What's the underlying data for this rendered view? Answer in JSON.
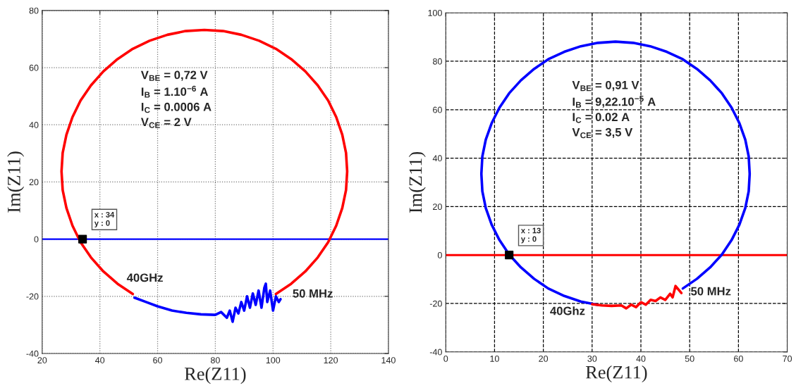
{
  "chart_data": [
    {
      "type": "line",
      "xlabel": "Re(Z11)",
      "ylabel": "Im(Z11)",
      "xlim": [
        20,
        140
      ],
      "xticks": [
        20,
        40,
        60,
        80,
        100,
        120,
        140
      ],
      "ylim": [
        -40,
        80
      ],
      "yticks": [
        -40,
        -20,
        0,
        20,
        40,
        60,
        80
      ],
      "grid": true,
      "legend": false,
      "series": [
        {
          "type": "line",
          "color": "#ff0000",
          "x": [
            101.0,
            106.3,
            111.2,
            115.5,
            119.1,
            121.9,
            124.0,
            125.3,
            125.7,
            125.3,
            124.0,
            121.9,
            119.1,
            115.5,
            111.2,
            106.3,
            101.0,
            95.2,
            89.0,
            82.7,
            76.2,
            69.7,
            63.4,
            57.2,
            51.4,
            46.1,
            41.2,
            36.9,
            33.3,
            30.5,
            28.4,
            27.1,
            26.7,
            27.1,
            28.4,
            30.5,
            33.3,
            36.9,
            41.2,
            46.1,
            51.4
          ],
          "values": [
            -19.2,
            -15.6,
            -11.3,
            -6.4,
            -1.1,
            4.7,
            10.9,
            17.2,
            23.7,
            30.2,
            36.5,
            42.7,
            48.5,
            53.8,
            58.7,
            63.0,
            66.6,
            69.4,
            71.5,
            72.8,
            73.2,
            72.8,
            71.5,
            69.4,
            66.6,
            63.0,
            58.7,
            53.8,
            48.5,
            42.7,
            36.5,
            30.2,
            23.7,
            17.2,
            10.9,
            4.7,
            -1.1,
            -6.4,
            -11.3,
            -15.6,
            -19.2
          ]
        },
        {
          "type": "line",
          "color": "#0000ff",
          "x": [
            52,
            56,
            60,
            65,
            70,
            75,
            80,
            82,
            84,
            85,
            86,
            87,
            88,
            89,
            90,
            91,
            92,
            93,
            94,
            95,
            96,
            97,
            97.5,
            98,
            99,
            100,
            101,
            102,
            102.6
          ],
          "values": [
            -20.5,
            -22,
            -23.5,
            -25,
            -25.8,
            -26.3,
            -26.5,
            -25.5,
            -27.5,
            -25,
            -28.9,
            -24,
            -26,
            -22,
            -25,
            -20,
            -24,
            -19,
            -23,
            -18,
            -24,
            -17,
            -15.6,
            -22,
            -18,
            -25,
            -20,
            -22,
            -21
          ]
        },
        {
          "type": "scatter",
          "color": "#000000",
          "marker": "square",
          "x": [
            34
          ],
          "values": [
            0
          ]
        }
      ],
      "ref_lines": [
        {
          "axis": "y",
          "value": 0,
          "color": "#0000ff"
        }
      ],
      "annotations": [
        "V$_{BE}$ = 0,72 V\nI$_{B}$ = 1.10$^{−6}$ A\nI$_{C}$ = 0.0006 A\nV$_{CE}$ = 2 V",
        {
          "text": "x : 34\ny : 0",
          "x": 34,
          "y": 0
        },
        "40GHz",
        "50 MHz"
      ]
    },
    {
      "type": "line",
      "xlabel": "Re(Z11)",
      "ylabel": "Im(Z11)",
      "xlim": [
        0,
        70
      ],
      "xticks": [
        0,
        10,
        20,
        30,
        40,
        50,
        60,
        70
      ],
      "ylim": [
        -40,
        100
      ],
      "yticks": [
        -40,
        -20,
        0,
        20,
        40,
        60,
        80,
        100
      ],
      "grid": true,
      "legend": false,
      "series": [
        {
          "type": "line",
          "color": "#0000ff",
          "x": [
            48.6,
            51.5,
            54.2,
            56.6,
            58.6,
            60.2,
            61.4,
            62.1,
            62.3,
            62.1,
            61.4,
            60.2,
            58.6,
            56.6,
            54.2,
            51.5,
            48.6,
            45.3,
            41.9,
            38.4,
            34.8,
            31.2,
            27.7,
            24.3,
            21.0,
            18.1,
            15.4,
            13.0,
            11.0,
            9.4,
            8.2,
            7.5,
            7.3,
            7.5,
            8.2,
            9.4,
            11.0,
            13.0,
            15.4,
            18.1,
            21.0,
            24.3,
            27.7,
            31.2
          ],
          "values": [
            -13.8,
            -9.8,
            -5.1,
            0.2,
            6.2,
            12.6,
            19.4,
            26.3,
            33.5,
            40.7,
            47.6,
            54.4,
            60.8,
            66.8,
            72.1,
            76.8,
            80.8,
            83.9,
            86.2,
            87.6,
            88.1,
            87.6,
            86.2,
            83.9,
            80.8,
            76.8,
            72.1,
            66.8,
            60.8,
            54.4,
            47.6,
            40.7,
            33.5,
            26.3,
            19.4,
            12.6,
            6.2,
            0.2,
            -5.1,
            -9.8,
            -13.8,
            -16.9,
            -19.2,
            -20.6
          ]
        },
        {
          "type": "line",
          "color": "#ff0000",
          "x": [
            30,
            32,
            34,
            36,
            37,
            38,
            39,
            40,
            41,
            42,
            43,
            44,
            45,
            46,
            46.5,
            47.1,
            48.3
          ],
          "values": [
            -20.3,
            -20.8,
            -21,
            -20.8,
            -22,
            -20.5,
            -21.5,
            -19.5,
            -20.5,
            -18.5,
            -19,
            -17.5,
            -18.5,
            -16,
            -17.5,
            -12.8,
            -15.7
          ]
        },
        {
          "type": "scatter",
          "color": "#000000",
          "marker": "square",
          "x": [
            13
          ],
          "values": [
            0
          ]
        }
      ],
      "ref_lines": [
        {
          "axis": "y",
          "value": 0,
          "color": "#ff0000"
        }
      ],
      "annotations": [
        "V$_{BE}$ = 0,91 V\nI$_{B}$ = 9,22.10$^{−5}$ A\nI$_{C}$ = 0.02 A\nV$_{CE}$ = 3,5 V",
        {
          "text": "x : 13\ny : 0",
          "x": 13,
          "y": 0
        },
        "40Ghz",
        "50 MHz"
      ]
    }
  ]
}
